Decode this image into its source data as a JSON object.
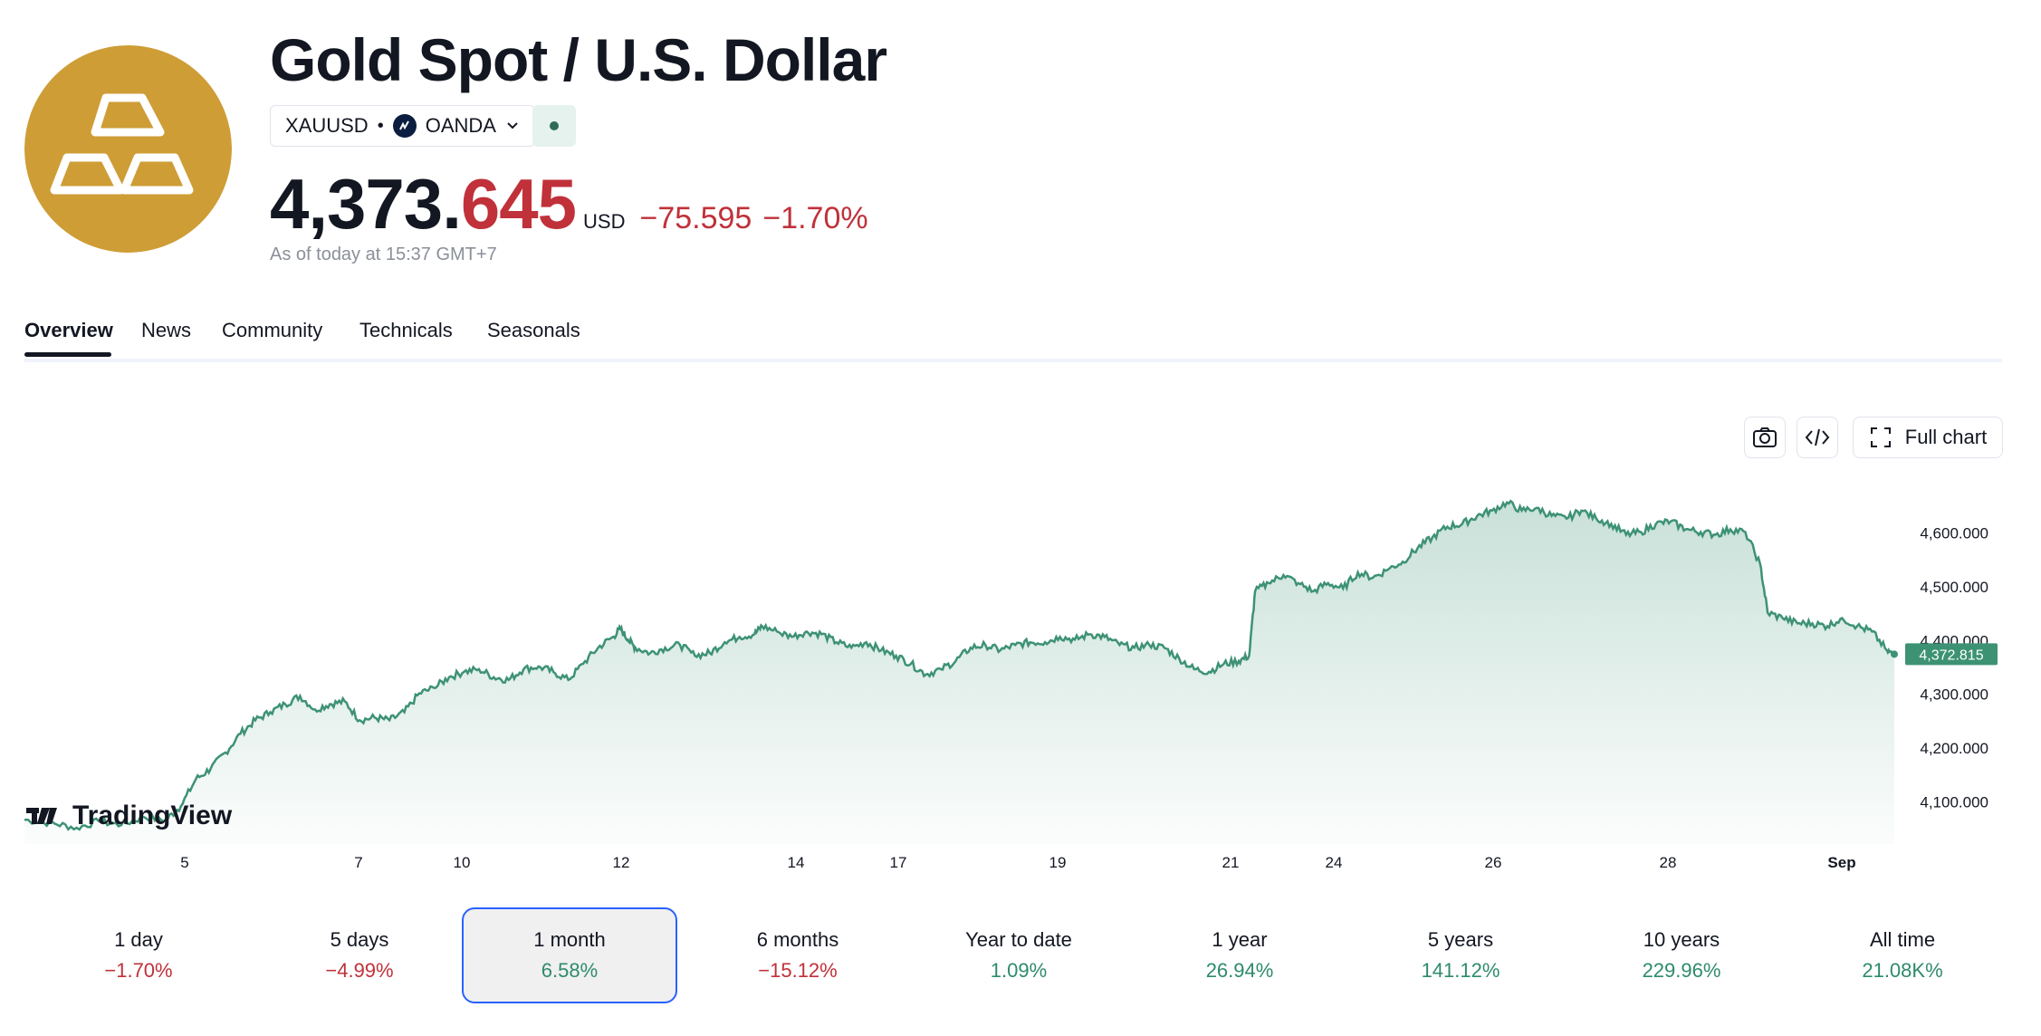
{
  "instrument": {
    "title": "Gold Spot / U.S. Dollar",
    "symbol": "XAUUSD",
    "separator": "•",
    "exchange": "OANDA",
    "price_main": "4,373.",
    "price_decimals": "645",
    "currency": "USD",
    "change": "−75.595",
    "change_percent": "−1.70%",
    "as_of": "As of today at 15:37 GMT+7",
    "logo_icon": "gold-bars-icon",
    "brand_color": "#CE9D36",
    "negative_color": "#C0313A",
    "positive_color": "#2E8B6A"
  },
  "tabs": [
    {
      "label": "Overview",
      "active": true
    },
    {
      "label": "News",
      "active": false
    },
    {
      "label": "Community",
      "active": false
    },
    {
      "label": "Technicals",
      "active": false
    },
    {
      "label": "Seasonals",
      "active": false
    }
  ],
  "toolbar": {
    "snapshot_icon": "camera-icon",
    "embed_icon": "code-icon",
    "full_chart_label": "Full chart",
    "full_chart_icon": "expand-icon"
  },
  "chart_data": {
    "type": "area",
    "series_color": "#3D9274",
    "x_ticks": [
      "5",
      "7",
      "10",
      "12",
      "14",
      "17",
      "19",
      "21",
      "24",
      "26",
      "28",
      "Sep"
    ],
    "y_ticks": [
      "4,100.000",
      "4,200.000",
      "4,300.000",
      "4,400.000",
      "4,500.000",
      "4,600.000"
    ],
    "ylim": [
      4040,
      4680
    ],
    "last_value": 4372.815,
    "last_value_label": "4,372.815",
    "watermark": "TradingView",
    "points": [
      [
        0.0,
        4065
      ],
      [
        0.02,
        4058
      ],
      [
        0.035,
        4050
      ],
      [
        0.05,
        4062
      ],
      [
        0.065,
        4055
      ],
      [
        0.08,
        4070
      ],
      [
        0.095,
        4065
      ],
      [
        0.105,
        4090
      ],
      [
        0.115,
        4140
      ],
      [
        0.125,
        4160
      ],
      [
        0.135,
        4190
      ],
      [
        0.145,
        4225
      ],
      [
        0.155,
        4250
      ],
      [
        0.165,
        4265
      ],
      [
        0.175,
        4280
      ],
      [
        0.185,
        4295
      ],
      [
        0.195,
        4270
      ],
      [
        0.205,
        4280
      ],
      [
        0.215,
        4285
      ],
      [
        0.225,
        4250
      ],
      [
        0.235,
        4255
      ],
      [
        0.245,
        4250
      ],
      [
        0.255,
        4265
      ],
      [
        0.265,
        4300
      ],
      [
        0.275,
        4310
      ],
      [
        0.285,
        4330
      ],
      [
        0.295,
        4340
      ],
      [
        0.305,
        4345
      ],
      [
        0.315,
        4330
      ],
      [
        0.325,
        4325
      ],
      [
        0.335,
        4345
      ],
      [
        0.345,
        4350
      ],
      [
        0.355,
        4340
      ],
      [
        0.365,
        4325
      ],
      [
        0.375,
        4355
      ],
      [
        0.385,
        4385
      ],
      [
        0.395,
        4405
      ],
      [
        0.4,
        4420
      ],
      [
        0.405,
        4400
      ],
      [
        0.41,
        4385
      ],
      [
        0.42,
        4375
      ],
      [
        0.43,
        4385
      ],
      [
        0.44,
        4390
      ],
      [
        0.45,
        4370
      ],
      [
        0.46,
        4375
      ],
      [
        0.47,
        4395
      ],
      [
        0.48,
        4405
      ],
      [
        0.49,
        4410
      ],
      [
        0.495,
        4425
      ],
      [
        0.505,
        4415
      ],
      [
        0.515,
        4405
      ],
      [
        0.525,
        4415
      ],
      [
        0.535,
        4410
      ],
      [
        0.545,
        4395
      ],
      [
        0.555,
        4385
      ],
      [
        0.565,
        4395
      ],
      [
        0.575,
        4380
      ],
      [
        0.585,
        4370
      ],
      [
        0.595,
        4355
      ],
      [
        0.605,
        4335
      ],
      [
        0.615,
        4345
      ],
      [
        0.625,
        4360
      ],
      [
        0.635,
        4385
      ],
      [
        0.645,
        4390
      ],
      [
        0.655,
        4380
      ],
      [
        0.665,
        4390
      ],
      [
        0.675,
        4395
      ],
      [
        0.685,
        4395
      ],
      [
        0.695,
        4405
      ],
      [
        0.705,
        4400
      ],
      [
        0.715,
        4410
      ],
      [
        0.725,
        4405
      ],
      [
        0.735,
        4390
      ],
      [
        0.745,
        4385
      ],
      [
        0.755,
        4390
      ],
      [
        0.765,
        4385
      ],
      [
        0.775,
        4365
      ],
      [
        0.785,
        4345
      ],
      [
        0.795,
        4340
      ],
      [
        0.805,
        4355
      ],
      [
        0.815,
        4360
      ],
      [
        0.822,
        4370
      ],
      [
        0.826,
        4490
      ],
      [
        0.835,
        4505
      ],
      [
        0.845,
        4520
      ],
      [
        0.855,
        4505
      ],
      [
        0.865,
        4490
      ],
      [
        0.875,
        4505
      ],
      [
        0.885,
        4495
      ],
      [
        0.895,
        4525
      ],
      [
        0.905,
        4515
      ],
      [
        0.915,
        4530
      ],
      [
        0.925,
        4545
      ],
      [
        0.935,
        4570
      ],
      [
        0.945,
        4590
      ],
      [
        0.955,
        4610
      ],
      [
        0.965,
        4615
      ],
      [
        0.975,
        4630
      ],
      [
        0.985,
        4640
      ],
      [
        0.995,
        4655
      ],
      [
        1.005,
        4640
      ],
      [
        1.015,
        4645
      ],
      [
        1.025,
        4630
      ],
      [
        1.035,
        4625
      ],
      [
        1.045,
        4640
      ],
      [
        1.055,
        4625
      ],
      [
        1.065,
        4615
      ],
      [
        1.075,
        4595
      ],
      [
        1.085,
        4600
      ],
      [
        1.095,
        4615
      ],
      [
        1.105,
        4620
      ],
      [
        1.115,
        4605
      ],
      [
        1.125,
        4600
      ],
      [
        1.135,
        4595
      ],
      [
        1.145,
        4605
      ],
      [
        1.155,
        4600
      ],
      [
        1.165,
        4540
      ],
      [
        1.17,
        4450
      ],
      [
        1.18,
        4440
      ],
      [
        1.19,
        4430
      ],
      [
        1.2,
        4430
      ],
      [
        1.21,
        4425
      ],
      [
        1.22,
        4440
      ],
      [
        1.23,
        4425
      ],
      [
        1.24,
        4415
      ],
      [
        1.25,
        4380
      ],
      [
        1.255,
        4370
      ]
    ]
  },
  "periods": [
    {
      "label": "1 day",
      "value": "−1.70%",
      "trend": "negative",
      "selected": false
    },
    {
      "label": "5 days",
      "value": "−4.99%",
      "trend": "negative",
      "selected": false
    },
    {
      "label": "1 month",
      "value": "6.58%",
      "trend": "positive",
      "selected": true
    },
    {
      "label": "6 months",
      "value": "−15.12%",
      "trend": "negative",
      "selected": false
    },
    {
      "label": "Year to date",
      "value": "1.09%",
      "trend": "positive",
      "selected": false
    },
    {
      "label": "1 year",
      "value": "26.94%",
      "trend": "positive",
      "selected": false
    },
    {
      "label": "5 years",
      "value": "141.12%",
      "trend": "positive",
      "selected": false
    },
    {
      "label": "10 years",
      "value": "229.96%",
      "trend": "positive",
      "selected": false
    },
    {
      "label": "All time",
      "value": "21.08K%",
      "trend": "positive",
      "selected": false
    }
  ]
}
